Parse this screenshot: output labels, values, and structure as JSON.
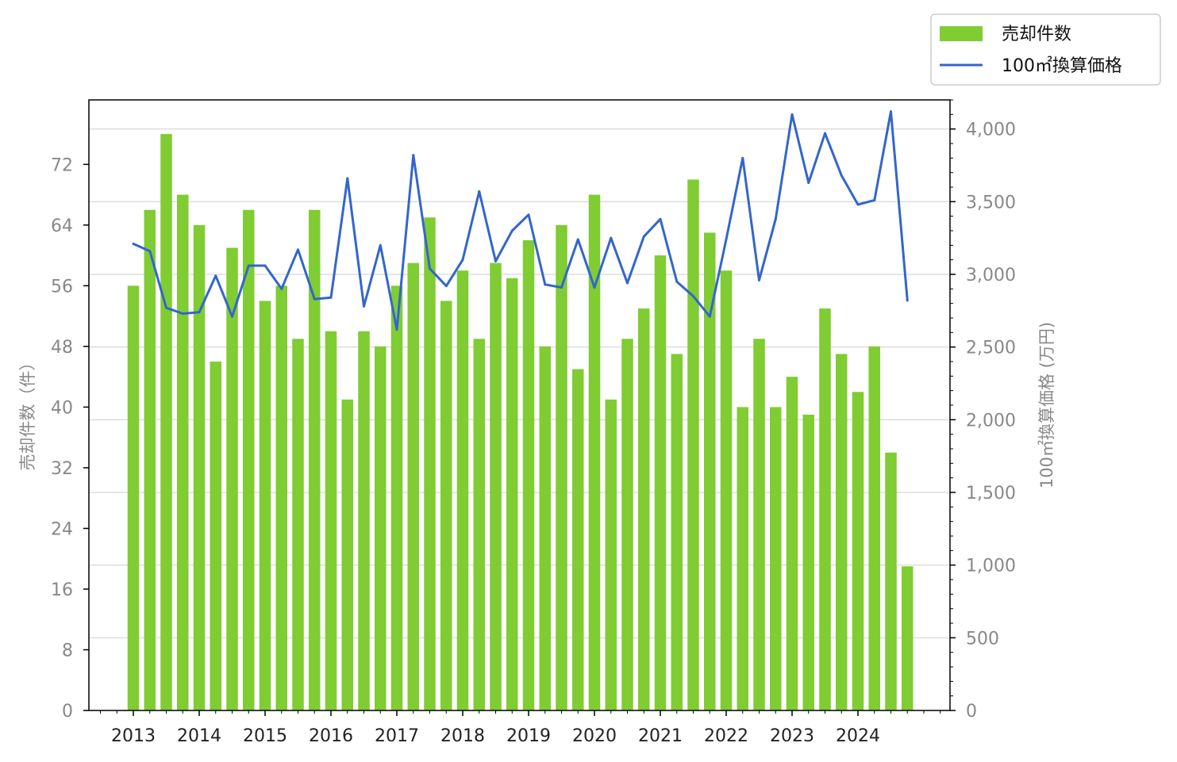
{
  "chart_data": {
    "type": "bar+line",
    "categories": [
      "2013-Q1",
      "2013-Q2",
      "2013-Q3",
      "2013-Q4",
      "2014-Q1",
      "2014-Q2",
      "2014-Q3",
      "2014-Q4",
      "2015-Q1",
      "2015-Q2",
      "2015-Q3",
      "2015-Q4",
      "2016-Q1",
      "2016-Q2",
      "2016-Q3",
      "2016-Q4",
      "2017-Q1",
      "2017-Q2",
      "2017-Q3",
      "2017-Q4",
      "2018-Q1",
      "2018-Q2",
      "2018-Q3",
      "2018-Q4",
      "2019-Q1",
      "2019-Q2",
      "2019-Q3",
      "2019-Q4",
      "2020-Q1",
      "2020-Q2",
      "2020-Q3",
      "2020-Q4",
      "2021-Q1",
      "2021-Q2",
      "2021-Q3",
      "2021-Q4",
      "2022-Q1",
      "2022-Q2",
      "2022-Q3",
      "2022-Q4",
      "2023-Q1",
      "2023-Q2",
      "2023-Q3",
      "2023-Q4",
      "2024-Q1",
      "2024-Q2",
      "2024-Q3",
      "2024-Q4"
    ],
    "x_tick_labels": [
      "2013",
      "2014",
      "2015",
      "2016",
      "2017",
      "2018",
      "2019",
      "2020",
      "2021",
      "2022",
      "2023",
      "2024"
    ],
    "series": [
      {
        "name": "売却件数",
        "type": "bar",
        "axis": "left",
        "color": "#80cc33",
        "values": [
          56,
          66,
          76,
          68,
          64,
          46,
          61,
          66,
          54,
          56,
          49,
          66,
          50,
          41,
          50,
          48,
          56,
          59,
          65,
          54,
          58,
          49,
          59,
          57,
          62,
          48,
          64,
          45,
          68,
          41,
          49,
          53,
          60,
          47,
          70,
          63,
          58,
          40,
          49,
          40,
          44,
          39,
          53,
          47,
          42,
          48,
          34,
          19
        ]
      },
      {
        "name": "100㎡換算価格",
        "type": "line",
        "axis": "right",
        "color": "#3366cc",
        "values": [
          3210,
          3160,
          2770,
          2730,
          2740,
          2990,
          2710,
          3060,
          3060,
          2900,
          3170,
          2830,
          2840,
          3660,
          2780,
          3200,
          2620,
          3820,
          3040,
          2920,
          3100,
          3570,
          3090,
          3300,
          3410,
          2930,
          2910,
          3240,
          2910,
          3250,
          2940,
          3260,
          3380,
          2950,
          2850,
          2710,
          3240,
          3800,
          2960,
          3380,
          4100,
          3630,
          3970,
          3680,
          3480,
          3510,
          4120,
          2820
        ]
      }
    ],
    "y_left": {
      "label": "売却件数（件）",
      "ylim": [
        0,
        80.5
      ],
      "ticks": [
        "0",
        "8",
        "16",
        "24",
        "32",
        "40",
        "48",
        "56",
        "64",
        "72"
      ]
    },
    "y_right": {
      "label": "100㎡換算価格 (万円)",
      "ylim": [
        0,
        4200
      ],
      "ticks": [
        "0",
        "500",
        "1,000",
        "1,500",
        "2,000",
        "2,500",
        "3,000",
        "3,500",
        "4,000"
      ]
    },
    "grid": "horizontal (right axis)",
    "legend": {
      "placement": "top-right",
      "entries": [
        "売却件数",
        "100㎡換算価格"
      ]
    }
  }
}
